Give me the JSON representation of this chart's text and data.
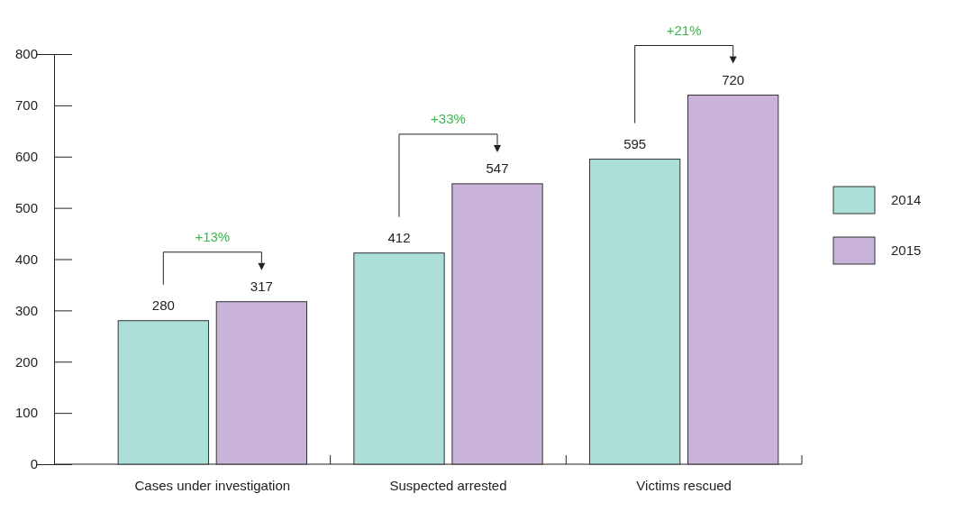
{
  "chart_data": {
    "type": "bar",
    "categories": [
      "Cases under investigation",
      "Suspected arrested",
      "Victims rescued"
    ],
    "series": [
      {
        "name": "2014",
        "color": "#acdfd8",
        "values": [
          280,
          412,
          595
        ]
      },
      {
        "name": "2015",
        "color": "#c9b3d9",
        "values": [
          317,
          547,
          720
        ]
      }
    ],
    "ylim": [
      0,
      800
    ],
    "yticks": [
      0,
      100,
      200,
      300,
      400,
      500,
      600,
      700,
      800
    ],
    "grid": false,
    "legend": "right",
    "data_labels": true,
    "annotations": [
      "+13%",
      "+33%",
      "+21%"
    ]
  }
}
